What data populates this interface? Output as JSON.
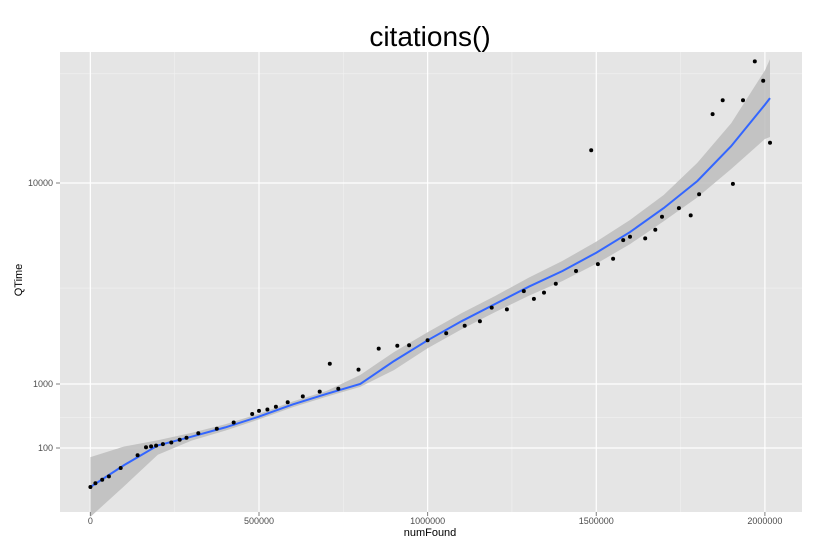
{
  "chart_data": {
    "type": "scatter",
    "title": "citations()",
    "xlabel": "numFound",
    "ylabel": "QTime",
    "xlim": [
      -90000,
      2110000
    ],
    "y_ticks": [
      {
        "label": "100",
        "value": 100
      },
      {
        "label": "1000",
        "value": 1000
      },
      {
        "label": "10000",
        "value": 10000
      }
    ],
    "x_ticks": [
      {
        "label": "0",
        "value": 0
      },
      {
        "label": "500000",
        "value": 500000
      },
      {
        "label": "1000000",
        "value": 1000000
      },
      {
        "label": "1500000",
        "value": 1500000
      },
      {
        "label": "2000000",
        "value": 2000000
      }
    ],
    "grid": true,
    "background": "#e5e5e5",
    "smooth_color": "#3366ff",
    "band_color": "#bdbdbd",
    "point_color": "#000000",
    "points": [
      [
        0,
        60
      ],
      [
        15000,
        63
      ],
      [
        35000,
        66
      ],
      [
        55000,
        69
      ],
      [
        90000,
        77
      ],
      [
        140000,
        91
      ],
      [
        165000,
        103
      ],
      [
        180000,
        106
      ],
      [
        195000,
        109
      ],
      [
        215000,
        115
      ],
      [
        240000,
        122
      ],
      [
        265000,
        135
      ],
      [
        285000,
        145
      ],
      [
        320000,
        170
      ],
      [
        375000,
        200
      ],
      [
        425000,
        250
      ],
      [
        480000,
        340
      ],
      [
        500000,
        380
      ],
      [
        525000,
        400
      ],
      [
        550000,
        440
      ],
      [
        585000,
        520
      ],
      [
        630000,
        640
      ],
      [
        680000,
        760
      ],
      [
        710000,
        1260
      ],
      [
        735000,
        840
      ],
      [
        795000,
        1180
      ],
      [
        855000,
        1500
      ],
      [
        910000,
        1550
      ],
      [
        945000,
        1560
      ],
      [
        1000000,
        1650
      ],
      [
        1055000,
        1790
      ],
      [
        1110000,
        1950
      ],
      [
        1155000,
        2050
      ],
      [
        1190000,
        2400
      ],
      [
        1235000,
        2350
      ],
      [
        1285000,
        2900
      ],
      [
        1315000,
        2650
      ],
      [
        1345000,
        2850
      ],
      [
        1380000,
        3150
      ],
      [
        1440000,
        3650
      ],
      [
        1485000,
        13900
      ],
      [
        1505000,
        3950
      ],
      [
        1550000,
        4200
      ],
      [
        1580000,
        5200
      ],
      [
        1600000,
        5400
      ],
      [
        1645000,
        5300
      ],
      [
        1675000,
        5850
      ],
      [
        1695000,
        6800
      ],
      [
        1745000,
        7500
      ],
      [
        1780000,
        6900
      ],
      [
        1805000,
        8800
      ],
      [
        1845000,
        20000
      ],
      [
        1875000,
        23000
      ],
      [
        1905000,
        9900
      ],
      [
        1935000,
        23000
      ],
      [
        1970000,
        34000
      ],
      [
        1995000,
        28000
      ],
      [
        2015000,
        15000
      ]
    ],
    "smooth": [
      [
        0,
        60
      ],
      [
        100000,
        80
      ],
      [
        200000,
        110
      ],
      [
        300000,
        150
      ],
      [
        400000,
        210
      ],
      [
        500000,
        310
      ],
      [
        600000,
        480
      ],
      [
        700000,
        700
      ],
      [
        800000,
        1000
      ],
      [
        900000,
        1300
      ],
      [
        1000000,
        1650
      ],
      [
        1100000,
        2050
      ],
      [
        1200000,
        2500
      ],
      [
        1300000,
        3050
      ],
      [
        1400000,
        3650
      ],
      [
        1500000,
        4500
      ],
      [
        1600000,
        5700
      ],
      [
        1700000,
        7500
      ],
      [
        1800000,
        10200
      ],
      [
        1900000,
        14500
      ],
      [
        2000000,
        22000
      ],
      [
        2015000,
        23500
      ]
    ],
    "band_halfwidth": [
      0.17,
      0.12,
      0.08,
      0.06,
      0.05,
      0.045,
      0.045,
      0.045,
      0.045,
      0.045,
      0.04,
      0.04,
      0.04,
      0.045,
      0.05,
      0.055,
      0.06,
      0.065,
      0.08,
      0.1,
      0.15,
      0.17
    ]
  }
}
